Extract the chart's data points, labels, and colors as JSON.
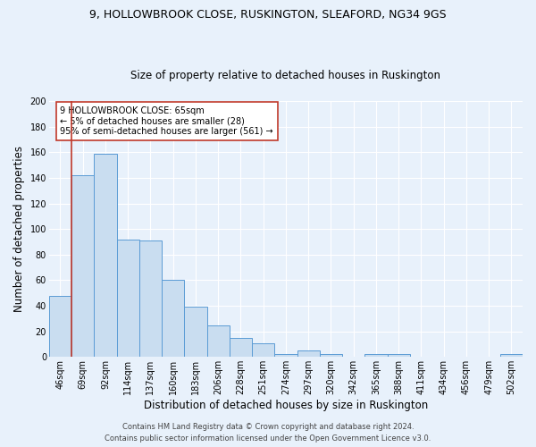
{
  "title": "9, HOLLOWBROOK CLOSE, RUSKINGTON, SLEAFORD, NG34 9GS",
  "subtitle": "Size of property relative to detached houses in Ruskington",
  "xlabel": "Distribution of detached houses by size in Ruskington",
  "ylabel": "Number of detached properties",
  "categories": [
    "46sqm",
    "69sqm",
    "92sqm",
    "114sqm",
    "137sqm",
    "160sqm",
    "183sqm",
    "206sqm",
    "228sqm",
    "251sqm",
    "274sqm",
    "297sqm",
    "320sqm",
    "342sqm",
    "365sqm",
    "388sqm",
    "411sqm",
    "434sqm",
    "456sqm",
    "479sqm",
    "502sqm"
  ],
  "values": [
    48,
    142,
    159,
    92,
    91,
    60,
    39,
    25,
    15,
    11,
    2,
    5,
    2,
    0,
    2,
    2,
    0,
    0,
    0,
    0,
    2
  ],
  "bar_color": "#c9ddf0",
  "bar_edge_color": "#5b9bd5",
  "vline_color": "#c0392b",
  "vline_x": 0.5,
  "annotation_text": "9 HOLLOWBROOK CLOSE: 65sqm\n← 5% of detached houses are smaller (28)\n95% of semi-detached houses are larger (561) →",
  "annotation_box_color": "#ffffff",
  "annotation_box_edge": "#c0392b",
  "ylim": [
    0,
    200
  ],
  "yticks": [
    0,
    20,
    40,
    60,
    80,
    100,
    120,
    140,
    160,
    180,
    200
  ],
  "background_color": "#e8f1fb",
  "grid_color": "#ffffff",
  "footer_line1": "Contains HM Land Registry data © Crown copyright and database right 2024.",
  "footer_line2": "Contains public sector information licensed under the Open Government Licence v3.0.",
  "title_fontsize": 9,
  "subtitle_fontsize": 8.5,
  "axis_label_fontsize": 8.5,
  "tick_fontsize": 7,
  "annotation_fontsize": 7,
  "footer_fontsize": 6
}
